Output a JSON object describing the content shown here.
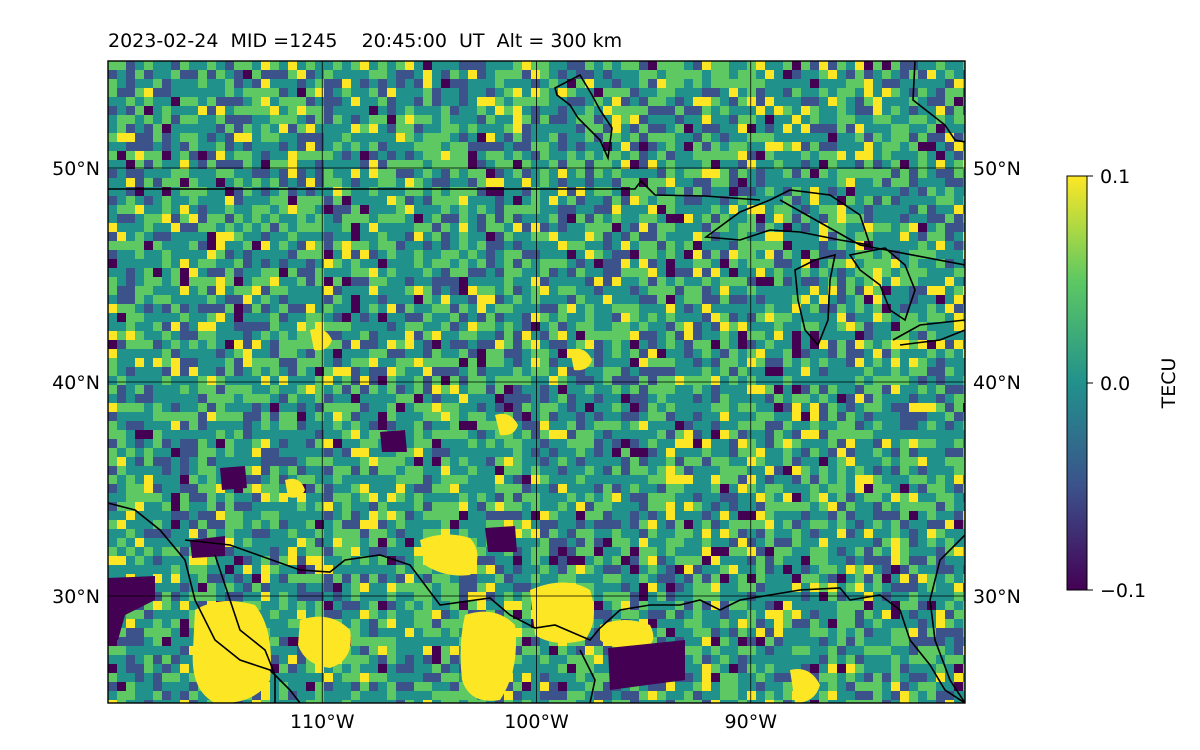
{
  "title": "2023-02-24  MID =1245    20:45:00  UT  Alt = 300 km",
  "map": {
    "lon_range": [
      -120,
      -80
    ],
    "lat_range": [
      25,
      55
    ],
    "gridlines": true,
    "lat_ticks": [
      {
        "value": 50,
        "label": "50°N"
      },
      {
        "value": 40,
        "label": "40°N"
      },
      {
        "value": 30,
        "label": "30°N"
      }
    ],
    "lon_ticks": [
      {
        "value": -110,
        "label": "110°W"
      },
      {
        "value": -100,
        "label": "100°W"
      },
      {
        "value": -90,
        "label": "90°W"
      }
    ],
    "field": "dTEC perturbation map (mottled, many cells saturated at ±0.1 TECU)"
  },
  "colorbar": {
    "label": "TECU",
    "colormap": "viridis",
    "min": -0.1,
    "max": 0.1,
    "ticks": [
      {
        "value": 0.1,
        "label": "0.1"
      },
      {
        "value": 0.0,
        "label": "0.0"
      },
      {
        "value": -0.1,
        "label": "−0.1"
      }
    ],
    "colors": [
      "#440154",
      "#3b528b",
      "#21918c",
      "#5ec962",
      "#fde725"
    ]
  }
}
